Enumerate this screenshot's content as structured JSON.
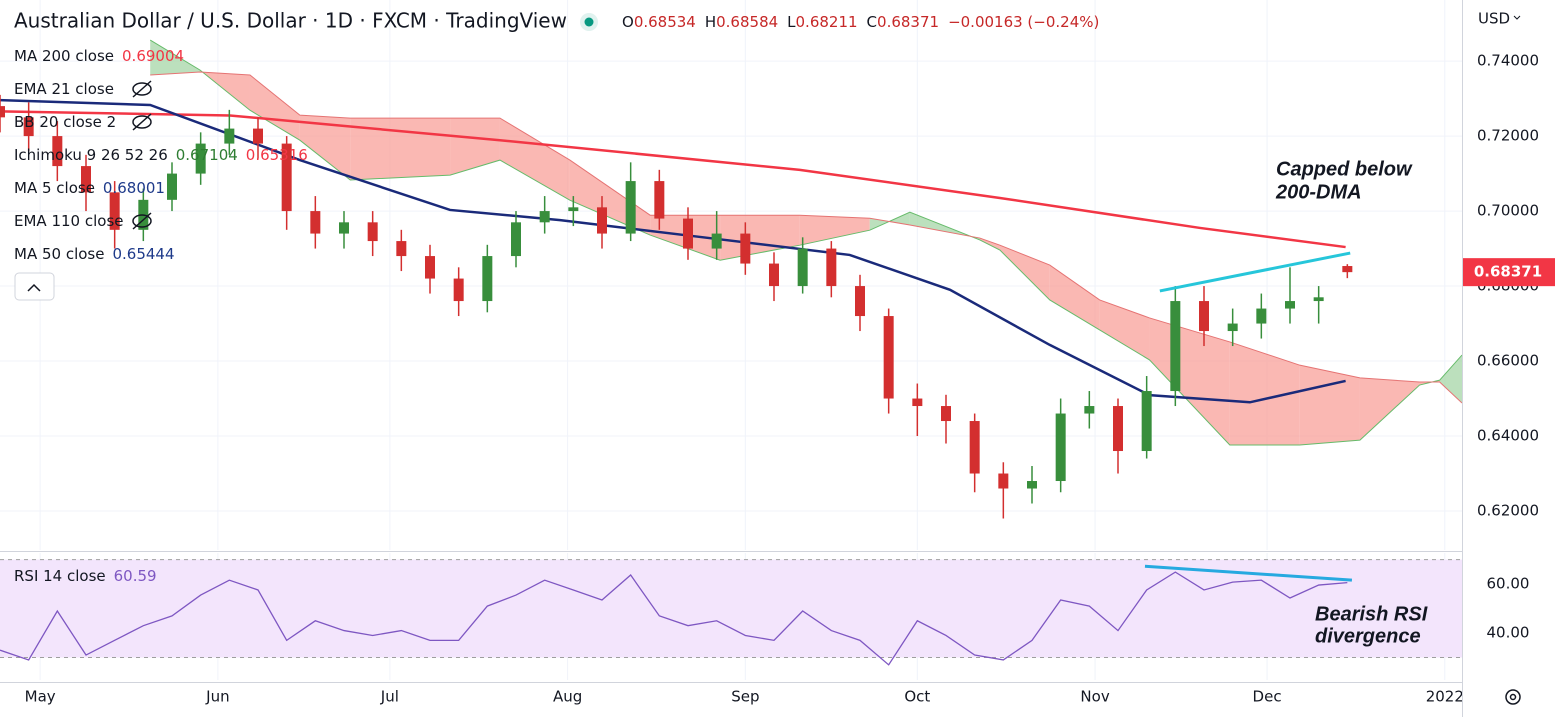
{
  "header": {
    "title": "Australian Dollar / U.S. Dollar · 1D · FXCM · TradingView",
    "quote": [
      {
        "label": "O",
        "value": "0.68534"
      },
      {
        "label": "H",
        "value": "0.68584"
      },
      {
        "label": "L",
        "value": "0.68211"
      },
      {
        "label": "C",
        "value": "0.68371"
      },
      {
        "label": "",
        "value": "−0.00163 (−0.24%)"
      }
    ],
    "currency": "USD"
  },
  "chart_data": [
    {
      "type": "candlestick",
      "legend": [
        {
          "name": "MA 200 close",
          "values": [
            "0.69004"
          ],
          "colors": [
            "#f23645"
          ],
          "hidden": false
        },
        {
          "name": "EMA 21 close",
          "values": [],
          "colors": [],
          "hidden": true
        },
        {
          "name": "BB 20 close 2",
          "values": [],
          "colors": [],
          "hidden": true
        },
        {
          "name": "Ichimoku 9 26 52 26",
          "values": [
            "0.67104",
            "0.65316"
          ],
          "colors": [
            "#2e7d32",
            "#f23645"
          ],
          "hidden": false
        },
        {
          "name": "MA 5 close",
          "values": [
            "0.68001"
          ],
          "colors": [
            "#1e3a8a"
          ],
          "hidden": false
        },
        {
          "name": "EMA 110 close",
          "values": [],
          "colors": [],
          "hidden": true
        },
        {
          "name": "MA 50 close",
          "values": [
            "0.65444"
          ],
          "colors": [
            "#1e3a8a"
          ],
          "hidden": false
        }
      ],
      "x": [
        -7,
        -2,
        3,
        8,
        13,
        18,
        23,
        28,
        33,
        38,
        43,
        48,
        53,
        58,
        63,
        68,
        73,
        78,
        83,
        88,
        93,
        98,
        103,
        108,
        113,
        118,
        123,
        128,
        133,
        138,
        143,
        148,
        153,
        158,
        163,
        168,
        173,
        178,
        183,
        188,
        193,
        198,
        203,
        208,
        213,
        218,
        223,
        228
      ],
      "open": [
        0.728,
        0.725,
        0.72,
        0.712,
        0.705,
        0.695,
        0.703,
        0.71,
        0.718,
        0.722,
        0.718,
        0.7,
        0.694,
        0.697,
        0.692,
        0.688,
        0.682,
        0.676,
        0.688,
        0.697,
        0.7,
        0.701,
        0.694,
        0.708,
        0.698,
        0.69,
        0.694,
        0.686,
        0.68,
        0.69,
        0.68,
        0.672,
        0.65,
        0.648,
        0.644,
        0.63,
        0.626,
        0.628,
        0.646,
        0.648,
        0.636,
        0.652,
        0.676,
        0.668,
        0.67,
        0.674,
        0.676,
        0.68534
      ],
      "high": [
        0.731,
        0.729,
        0.724,
        0.715,
        0.708,
        0.706,
        0.713,
        0.721,
        0.727,
        0.725,
        0.72,
        0.704,
        0.7,
        0.7,
        0.695,
        0.691,
        0.685,
        0.691,
        0.7,
        0.704,
        0.704,
        0.704,
        0.713,
        0.711,
        0.701,
        0.7,
        0.697,
        0.689,
        0.693,
        0.692,
        0.683,
        0.674,
        0.654,
        0.651,
        0.646,
        0.633,
        0.632,
        0.65,
        0.652,
        0.65,
        0.656,
        0.68,
        0.68,
        0.674,
        0.678,
        0.685,
        0.68,
        0.68584
      ],
      "low": [
        0.721,
        0.716,
        0.708,
        0.7,
        0.69,
        0.692,
        0.7,
        0.707,
        0.715,
        0.714,
        0.695,
        0.69,
        0.69,
        0.688,
        0.684,
        0.678,
        0.672,
        0.673,
        0.685,
        0.694,
        0.696,
        0.69,
        0.692,
        0.695,
        0.687,
        0.687,
        0.683,
        0.676,
        0.678,
        0.677,
        0.668,
        0.646,
        0.64,
        0.638,
        0.625,
        0.618,
        0.622,
        0.625,
        0.642,
        0.63,
        0.634,
        0.648,
        0.664,
        0.664,
        0.666,
        0.67,
        0.67,
        0.68211
      ],
      "close": [
        0.725,
        0.72,
        0.712,
        0.705,
        0.695,
        0.703,
        0.71,
        0.718,
        0.722,
        0.718,
        0.7,
        0.694,
        0.697,
        0.692,
        0.688,
        0.682,
        0.676,
        0.688,
        0.697,
        0.7,
        0.701,
        0.694,
        0.708,
        0.698,
        0.69,
        0.694,
        0.686,
        0.68,
        0.69,
        0.68,
        0.672,
        0.65,
        0.648,
        0.644,
        0.63,
        0.626,
        0.628,
        0.646,
        0.648,
        0.636,
        0.652,
        0.676,
        0.668,
        0.67,
        0.674,
        0.676,
        0.677,
        0.68371
      ],
      "up_color": "#388e3c",
      "down_color": "#d32f2f",
      "lines": [
        {
          "color": "#f23645",
          "width": 2.5,
          "x": [
            -7,
            33.1,
            80.2,
            132.5,
            167.4,
            202.3,
            227.7
          ],
          "values": [
            0.7266,
            0.7255,
            0.7189,
            0.711,
            0.7035,
            0.6955,
            0.6904
          ]
        },
        {
          "color": "#1a2a7a",
          "width": 2.5,
          "x": [
            -7,
            19.2,
            45.3,
            71.5,
            90.7,
            115.1,
            141.2,
            158.7,
            176.1,
            193.5,
            211,
            227.7
          ],
          "values": [
            0.7296,
            0.7283,
            0.7136,
            0.7003,
            0.6976,
            0.6931,
            0.6883,
            0.679,
            0.6643,
            0.6509,
            0.649,
            0.6547
          ]
        }
      ],
      "cloud": {
        "x": [
          19.2,
          27.9,
          36.6,
          45.3,
          54.1,
          71.5,
          80.2,
          92.4,
          106.4,
          118.6,
          132.5,
          144.7,
          151.7,
          163.9,
          167.4,
          176.1,
          184.8,
          193.5,
          207.5,
          219.7,
          230.2,
          240.6,
          244.1,
          248
        ],
        "spanA": [
          0.7456,
          0.7376,
          0.7269,
          0.7189,
          0.7083,
          0.7096,
          0.7136,
          0.7029,
          0.6936,
          0.6869,
          0.6909,
          0.6949,
          0.6997,
          0.6923,
          0.6896,
          0.6763,
          0.6683,
          0.6603,
          0.6376,
          0.6376,
          0.6389,
          0.6536,
          0.6549,
          0.6616
        ],
        "spanB": [
          0.7363,
          0.7371,
          0.7363,
          0.7256,
          0.7248,
          0.7248,
          0.7248,
          0.7136,
          0.6989,
          0.6989,
          0.6989,
          0.6981,
          0.6963,
          0.6928,
          0.6909,
          0.6856,
          0.6763,
          0.6715,
          0.6651,
          0.6589,
          0.6555,
          0.6544,
          0.6544,
          0.6488
        ],
        "up_color": "#a5d6a7",
        "down_color": "#f8a09a"
      },
      "trendlines": [
        {
          "color": "#26c6da",
          "x": [
            195.3,
            228.5
          ],
          "y": [
            0.6787,
            0.6888
          ]
        }
      ],
      "annotations": [
        "Capped below",
        "200-DMA"
      ],
      "xlim": [
        -7,
        248
      ],
      "xticks": [
        {
          "value": 0,
          "label": "May"
        },
        {
          "value": 31,
          "label": "Jun"
        },
        {
          "value": 61,
          "label": "Jul"
        },
        {
          "value": 92,
          "label": "Aug"
        },
        {
          "value": 123,
          "label": "Sep"
        },
        {
          "value": 153,
          "label": "Oct"
        },
        {
          "value": 184,
          "label": "Nov"
        },
        {
          "value": 214,
          "label": "Dec"
        },
        {
          "value": 245,
          "label": "2022"
        }
      ],
      "ylim": [
        0.6096,
        0.7563
      ],
      "yticks": [
        {
          "value": 0.62,
          "label": "0.62000"
        },
        {
          "value": 0.64,
          "label": "0.64000"
        },
        {
          "value": 0.66,
          "label": "0.66000"
        },
        {
          "value": 0.68,
          "label": "0.68000"
        },
        {
          "value": 0.7,
          "label": "0.70000"
        },
        {
          "value": 0.72,
          "label": "0.72000"
        },
        {
          "value": 0.74,
          "label": "0.74000"
        }
      ],
      "grid": true
    },
    {
      "type": "line",
      "legend": {
        "name": "RSI 14 close",
        "value": "60.59"
      },
      "color": "#7e57c2",
      "x": [
        -7,
        -2,
        3,
        8,
        13,
        18,
        23,
        28,
        33,
        38,
        43,
        48,
        53,
        58,
        63,
        68,
        73,
        78,
        83,
        88,
        93,
        98,
        103,
        108,
        113,
        118,
        123,
        128,
        133,
        138,
        143,
        148,
        153,
        158,
        163,
        168,
        173,
        178,
        183,
        188,
        193,
        198,
        203,
        208,
        213,
        218,
        223,
        228
      ],
      "values": [
        33,
        29,
        49,
        31,
        37,
        43,
        47,
        55.5,
        61.6,
        57.6,
        37,
        45,
        41,
        39,
        41,
        37,
        37,
        51,
        55.5,
        61.6,
        57.6,
        53.5,
        63.7,
        47,
        43,
        45,
        39,
        37,
        49,
        41,
        37,
        27,
        45,
        39,
        31,
        29,
        37,
        53.5,
        51,
        41,
        57.6,
        64.9,
        57.6,
        60.8,
        61.6,
        54.3,
        59.6,
        60.59
      ],
      "bands": [
        70,
        30
      ],
      "trendlines": [
        {
          "color": "#26a9e0",
          "x": [
            192.7,
            228.8
          ],
          "y": [
            67.3,
            61.6
          ]
        }
      ],
      "annotations": [
        "Bearish RSI",
        "divergence"
      ],
      "xlim": [
        -7,
        248
      ],
      "ylim": [
        20.8,
        72.7
      ],
      "yticks": [
        {
          "value": 40,
          "label": "40.00"
        },
        {
          "value": 60,
          "label": "60.00"
        }
      ]
    }
  ]
}
